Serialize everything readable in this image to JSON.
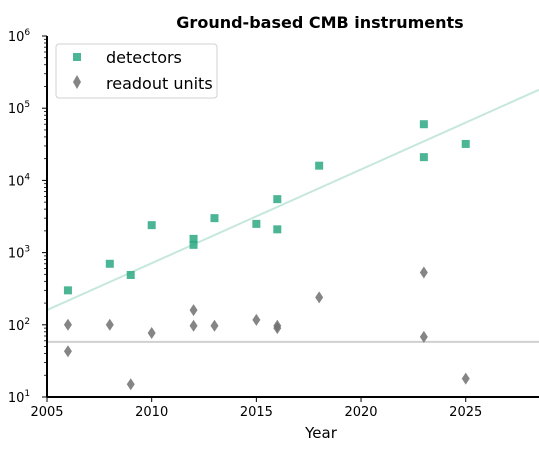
{
  "chart_data": {
    "type": "scatter",
    "title": "Ground-based CMB instruments",
    "xlabel": "Year",
    "ylabel": "",
    "xlim": [
      2005,
      2028.5
    ],
    "ylim": [
      10,
      1000000
    ],
    "yscale": "log",
    "x_ticks": [
      "2005",
      "2010",
      "2015",
      "2020",
      "2025"
    ],
    "x_tick_values": [
      2005,
      2010,
      2015,
      2020,
      2025
    ],
    "y_ticks": [
      {
        "base": "10",
        "exp": "1",
        "value": 10
      },
      {
        "base": "10",
        "exp": "2",
        "value": 100
      },
      {
        "base": "10",
        "exp": "3",
        "value": 1000
      },
      {
        "base": "10",
        "exp": "4",
        "value": 10000
      },
      {
        "base": "10",
        "exp": "5",
        "value": 100000
      },
      {
        "base": "10",
        "exp": "6",
        "value": 1000000
      }
    ],
    "legend_position": "top-left",
    "series": [
      {
        "name": "detectors",
        "marker": "square",
        "color": "#2ca882",
        "points": [
          [
            2006,
            300
          ],
          [
            2008,
            700
          ],
          [
            2009,
            490
          ],
          [
            2010,
            2400
          ],
          [
            2012,
            1550
          ],
          [
            2012,
            1280
          ],
          [
            2013,
            3000
          ],
          [
            2015,
            2500
          ],
          [
            2016,
            5500
          ],
          [
            2016,
            2100
          ],
          [
            2018,
            16000
          ],
          [
            2023,
            60000
          ],
          [
            2023,
            21000
          ],
          [
            2025,
            32000
          ]
        ]
      },
      {
        "name": "readout units",
        "marker": "diamond",
        "color": "#707070",
        "points": [
          [
            2006,
            100
          ],
          [
            2006,
            43
          ],
          [
            2008,
            100
          ],
          [
            2009,
            15
          ],
          [
            2010,
            77
          ],
          [
            2012,
            160
          ],
          [
            2012,
            97
          ],
          [
            2013,
            97
          ],
          [
            2015,
            117
          ],
          [
            2016,
            97
          ],
          [
            2016,
            90
          ],
          [
            2018,
            240
          ],
          [
            2023,
            530
          ],
          [
            2023,
            68
          ],
          [
            2025,
            18
          ]
        ]
      }
    ],
    "trend_lines": [
      {
        "color": "#c6e8dc",
        "points": [
          [
            2005,
            160
          ],
          [
            2028.5,
            180000
          ]
        ]
      },
      {
        "color": "#d0d0d0",
        "points": [
          [
            2005,
            58
          ],
          [
            2028.5,
            58
          ]
        ]
      }
    ]
  }
}
